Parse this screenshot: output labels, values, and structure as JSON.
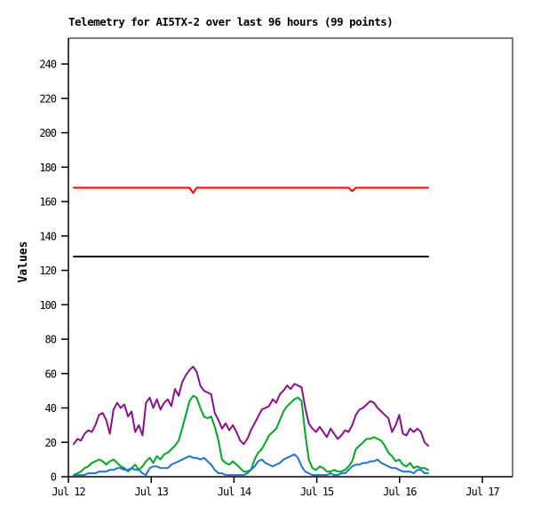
{
  "chart_data": {
    "type": "line",
    "title": "Telemetry for AI5TX-2 over last 96 hours (99 points)",
    "xlabel": "",
    "ylabel": "Values",
    "ylim": [
      0,
      255
    ],
    "y_ticks": [
      0,
      20,
      40,
      60,
      80,
      100,
      120,
      140,
      160,
      180,
      200,
      220,
      240
    ],
    "x_tick_labels": [
      "Jul 12",
      "Jul 13",
      "Jul 14",
      "Jul 15",
      "Jul 16",
      "Jul 17"
    ],
    "grid": false,
    "legend": "none",
    "num_points": 99,
    "colors": {
      "axis": "#000000",
      "frame": "#555555",
      "background": "#ffffff"
    },
    "series": [
      {
        "name": "red",
        "color": "#ff0000",
        "values": [
          168,
          168,
          168,
          168,
          168,
          168,
          168,
          168,
          168,
          168,
          168,
          168,
          168,
          168,
          168,
          168,
          168,
          168,
          168,
          168,
          168,
          168,
          168,
          168,
          168,
          168,
          168,
          168,
          168,
          168,
          168,
          168,
          168,
          165,
          168,
          168,
          168,
          168,
          168,
          168,
          168,
          168,
          168,
          168,
          168,
          168,
          168,
          168,
          168,
          168,
          168,
          168,
          168,
          168,
          168,
          168,
          168,
          168,
          168,
          168,
          168,
          168,
          168,
          168,
          168,
          168,
          168,
          168,
          168,
          168,
          168,
          168,
          168,
          168,
          168,
          168,
          168,
          166,
          168,
          168,
          168,
          168,
          168,
          168,
          168,
          168,
          168,
          168,
          168,
          168,
          168,
          168,
          168,
          168,
          168,
          168,
          168,
          168,
          168
        ]
      },
      {
        "name": "black",
        "color": "#000000",
        "values": [
          128,
          128,
          128,
          128,
          128,
          128,
          128,
          128,
          128,
          128,
          128,
          128,
          128,
          128,
          128,
          128,
          128,
          128,
          128,
          128,
          128,
          128,
          128,
          128,
          128,
          128,
          128,
          128,
          128,
          128,
          128,
          128,
          128,
          128,
          128,
          128,
          128,
          128,
          128,
          128,
          128,
          128,
          128,
          128,
          128,
          128,
          128,
          128,
          128,
          128,
          128,
          128,
          128,
          128,
          128,
          128,
          128,
          128,
          128,
          128,
          128,
          128,
          128,
          128,
          128,
          128,
          128,
          128,
          128,
          128,
          128,
          128,
          128,
          128,
          128,
          128,
          128,
          128,
          128,
          128,
          128,
          128,
          128,
          128,
          128,
          128,
          128,
          128,
          128,
          128,
          128,
          128,
          128,
          128,
          128,
          128,
          128,
          128,
          128
        ]
      },
      {
        "name": "purple",
        "color": "#8b108b",
        "values": [
          19,
          22,
          21,
          25,
          27,
          26,
          30,
          36,
          37,
          33,
          25,
          39,
          43,
          40,
          42,
          35,
          38,
          26,
          30,
          24,
          43,
          46,
          40,
          45,
          39,
          43,
          45,
          41,
          51,
          47,
          55,
          59,
          62,
          64,
          61,
          53,
          50,
          49,
          48,
          37,
          33,
          28,
          31,
          27,
          30,
          26,
          21,
          19,
          22,
          27,
          31,
          35,
          39,
          40,
          41,
          45,
          43,
          48,
          50,
          53,
          51,
          54,
          53,
          52,
          40,
          31,
          28,
          26,
          29,
          26,
          23,
          28,
          25,
          22,
          24,
          27,
          26,
          30,
          36,
          39,
          40,
          42,
          44,
          43,
          40,
          38,
          36,
          34,
          26,
          30,
          36,
          25,
          24,
          28,
          26,
          28,
          26,
          20,
          18
        ]
      },
      {
        "name": "green",
        "color": "#00a81e",
        "values": [
          1,
          2,
          3,
          5,
          6,
          8,
          9,
          10,
          9,
          7,
          9,
          10,
          8,
          6,
          5,
          3,
          5,
          7,
          4,
          6,
          9,
          11,
          8,
          12,
          10,
          13,
          14,
          16,
          18,
          21,
          28,
          36,
          44,
          47,
          46,
          40,
          35,
          34,
          35,
          29,
          21,
          10,
          8,
          7,
          9,
          7,
          5,
          3,
          3,
          4,
          10,
          14,
          16,
          20,
          24,
          26,
          28,
          33,
          38,
          41,
          43,
          45,
          46,
          44,
          25,
          10,
          5,
          4,
          6,
          5,
          3,
          3,
          4,
          3,
          3,
          4,
          6,
          9,
          16,
          18,
          20,
          22,
          22,
          23,
          22,
          21,
          18,
          14,
          12,
          9,
          10,
          7,
          6,
          8,
          5,
          6,
          5,
          5,
          4
        ]
      },
      {
        "name": "blue",
        "color": "#2272ce",
        "values": [
          1,
          1,
          1,
          1,
          2,
          2,
          2,
          3,
          3,
          3,
          4,
          4,
          5,
          5,
          4,
          4,
          5,
          4,
          4,
          2,
          1,
          5,
          6,
          6,
          5,
          5,
          5,
          7,
          8,
          9,
          10,
          11,
          12,
          11,
          11,
          10,
          11,
          9,
          7,
          4,
          2,
          2,
          1,
          1,
          1,
          1,
          1,
          1,
          2,
          4,
          6,
          9,
          10,
          8,
          7,
          6,
          7,
          8,
          10,
          11,
          12,
          13,
          11,
          6,
          3,
          2,
          1,
          1,
          1,
          1,
          1,
          2,
          1,
          1,
          2,
          2,
          4,
          6,
          7,
          7,
          8,
          8,
          9,
          9,
          10,
          8,
          7,
          6,
          5,
          5,
          4,
          3,
          3,
          3,
          2,
          4,
          4,
          2,
          2
        ]
      }
    ]
  }
}
